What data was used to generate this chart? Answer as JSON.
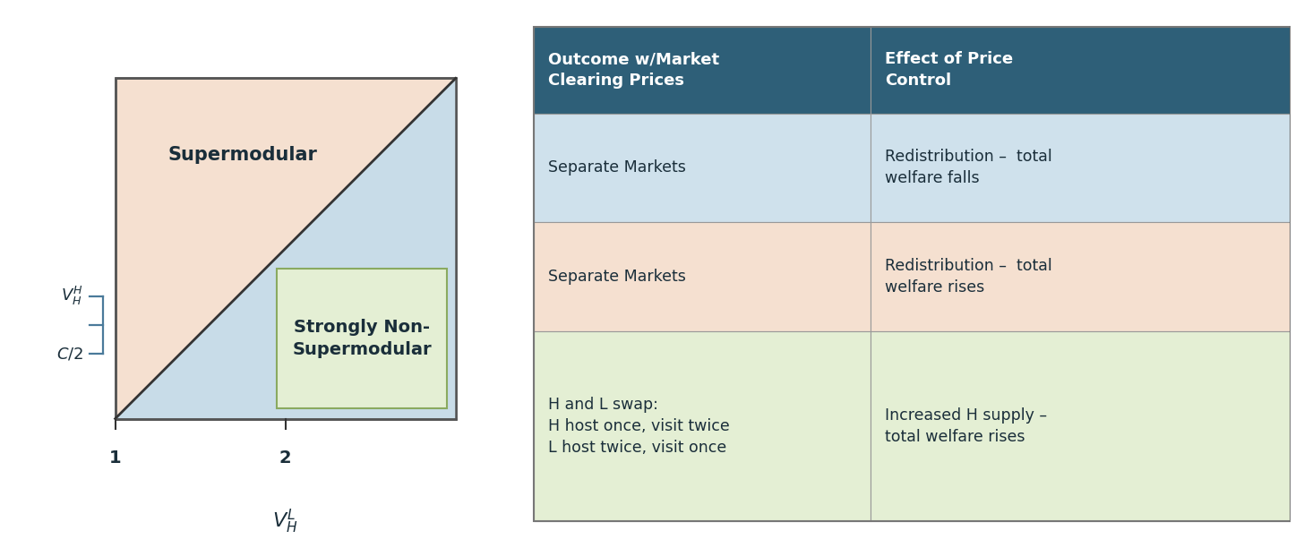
{
  "fig_width": 14.56,
  "fig_height": 6.12,
  "bg_color": "#ffffff",
  "plot_region_color": "#f5e0d0",
  "triangle_color": "#c8dce8",
  "green_box_color": "#e4efd4",
  "green_box_edge": "#8aaa60",
  "supermodular_label": "Supermodular",
  "strongly_non_label": "Strongly Non-\nSupermodular",
  "xlabel": "$V_H^L$",
  "ylabel_top": "$V_H^H$",
  "ylabel_bottom": "$C/2$",
  "header_bg": "#2e5f78",
  "header_text_color": "#ffffff",
  "col1_header": "Outcome w/Market\nClearing Prices",
  "col2_header": "Effect of Price\nControl",
  "row1_bg": "#cfe1ec",
  "row2_bg": "#f5e0d0",
  "row3_bg": "#e4efd4",
  "row1_col1": "Separate Markets",
  "row1_col2": "Redistribution –  total\nwelfare falls",
  "row2_col1": "Separate Markets",
  "row2_col2": "Redistribution –  total\nwelfare rises",
  "row3_col1": "H and L swap:\nH host once, visit twice\nL host twice, visit once",
  "row3_col2": "Increased H supply –\ntotal welfare rises",
  "text_color_dark": "#1a2e3a",
  "label_bracket_color": "#4a7a9a",
  "header_fontsize": 13,
  "cell_fontsize": 12.5,
  "diagram_label_fontsize": 15,
  "tick_fontsize": 14,
  "axis_label_fontsize": 16
}
